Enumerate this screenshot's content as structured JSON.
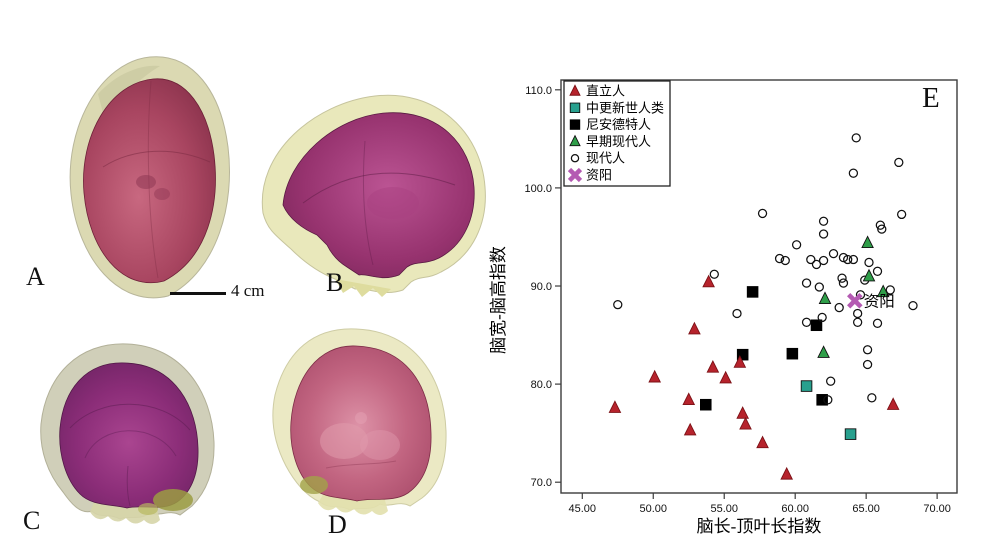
{
  "figure": {
    "scale_bar_label": "4 cm",
    "panels": [
      {
        "label": "A"
      },
      {
        "label": "B"
      },
      {
        "label": "C"
      },
      {
        "label": "D"
      }
    ]
  },
  "chart": {
    "panel_label": "E"
  },
  "chart_data": {
    "type": "scatter",
    "title": "",
    "xlabel": "脑长-顶叶长指数",
    "ylabel": "脑宽-脑高指数",
    "xlim": [
      43.5,
      71.4
    ],
    "ylim": [
      68.9,
      111.0
    ],
    "x_tick_values": [
      45,
      50,
      55,
      60,
      65,
      70
    ],
    "x_tick_labels": [
      "45.00",
      "50.00",
      "55.00",
      "60.00",
      "65.00",
      "70.00"
    ],
    "y_tick_values": [
      110,
      100,
      90,
      80,
      70
    ],
    "y_tick_labels": [
      "110.0",
      "100.0",
      "90.0",
      "80.0",
      "70.0"
    ],
    "grid": false,
    "legend_position": "top-left",
    "annotation": {
      "text": "资阳",
      "x": 64.2,
      "y": 88.5
    },
    "series": [
      {
        "name": "直立人",
        "marker": "triangle",
        "color": "#b6232c",
        "edge": "#7c1116",
        "z": 2,
        "points": [
          [
            53.9,
            90.4
          ],
          [
            52.9,
            85.6
          ],
          [
            50.1,
            80.7
          ],
          [
            47.3,
            77.6
          ],
          [
            54.2,
            81.7
          ],
          [
            55.1,
            80.6
          ],
          [
            56.1,
            82.2
          ],
          [
            52.5,
            78.4
          ],
          [
            56.3,
            77.0
          ],
          [
            56.5,
            75.9
          ],
          [
            52.6,
            75.3
          ],
          [
            57.7,
            74.0
          ],
          [
            59.4,
            70.8
          ],
          [
            66.9,
            77.9
          ]
        ]
      },
      {
        "name": "中更新世人类",
        "marker": "square",
        "color": "#28a08e",
        "edge": "#111111",
        "z": 1,
        "points": [
          [
            60.8,
            79.8
          ],
          [
            63.9,
            74.9
          ]
        ]
      },
      {
        "name": "尼安德特人",
        "marker": "square",
        "color": "#000000",
        "edge": "#000000",
        "z": 0,
        "points": [
          [
            57.0,
            89.4
          ],
          [
            56.3,
            83.0
          ],
          [
            53.7,
            77.9
          ],
          [
            61.5,
            86.0
          ],
          [
            59.8,
            83.1
          ],
          [
            61.9,
            78.4
          ]
        ]
      },
      {
        "name": "早期现代人",
        "marker": "triangle",
        "color": "#2f9e49",
        "edge": "#111111",
        "z": 4,
        "points": [
          [
            65.1,
            94.4
          ],
          [
            65.2,
            91.0
          ],
          [
            66.2,
            89.4
          ],
          [
            62.1,
            88.7
          ],
          [
            62.0,
            83.2
          ]
        ]
      },
      {
        "name": "现代人",
        "marker": "circle",
        "color": "#ffffff",
        "edge": "#111111",
        "z": 3,
        "points": [
          [
            64.3,
            105.1
          ],
          [
            67.3,
            102.6
          ],
          [
            64.1,
            101.5
          ],
          [
            67.5,
            97.3
          ],
          [
            57.7,
            97.4
          ],
          [
            62.0,
            96.6
          ],
          [
            62.0,
            95.3
          ],
          [
            66.0,
            96.2
          ],
          [
            66.1,
            95.8
          ],
          [
            60.1,
            94.2
          ],
          [
            58.9,
            92.8
          ],
          [
            59.3,
            92.6
          ],
          [
            61.1,
            92.7
          ],
          [
            61.5,
            92.2
          ],
          [
            62.0,
            92.6
          ],
          [
            62.7,
            93.3
          ],
          [
            63.4,
            92.9
          ],
          [
            63.7,
            92.7
          ],
          [
            64.1,
            92.7
          ],
          [
            65.2,
            92.4
          ],
          [
            65.8,
            91.5
          ],
          [
            64.9,
            90.6
          ],
          [
            63.3,
            90.8
          ],
          [
            63.4,
            90.3
          ],
          [
            60.8,
            90.3
          ],
          [
            61.7,
            89.9
          ],
          [
            66.7,
            89.6
          ],
          [
            64.6,
            89.1
          ],
          [
            68.3,
            88.0
          ],
          [
            63.1,
            87.8
          ],
          [
            64.4,
            87.2
          ],
          [
            61.9,
            86.8
          ],
          [
            60.8,
            86.3
          ],
          [
            64.4,
            86.3
          ],
          [
            65.8,
            86.2
          ],
          [
            55.9,
            87.2
          ],
          [
            47.5,
            88.1
          ],
          [
            54.3,
            91.2
          ],
          [
            65.1,
            83.5
          ],
          [
            65.1,
            82.0
          ],
          [
            62.5,
            80.3
          ],
          [
            62.3,
            78.4
          ],
          [
            65.4,
            78.6
          ]
        ]
      },
      {
        "name": "资阳",
        "marker": "x",
        "color": "#b45ab2",
        "edge": "#b45ab2",
        "z": 5,
        "points": [
          [
            64.2,
            88.5
          ]
        ]
      }
    ]
  }
}
